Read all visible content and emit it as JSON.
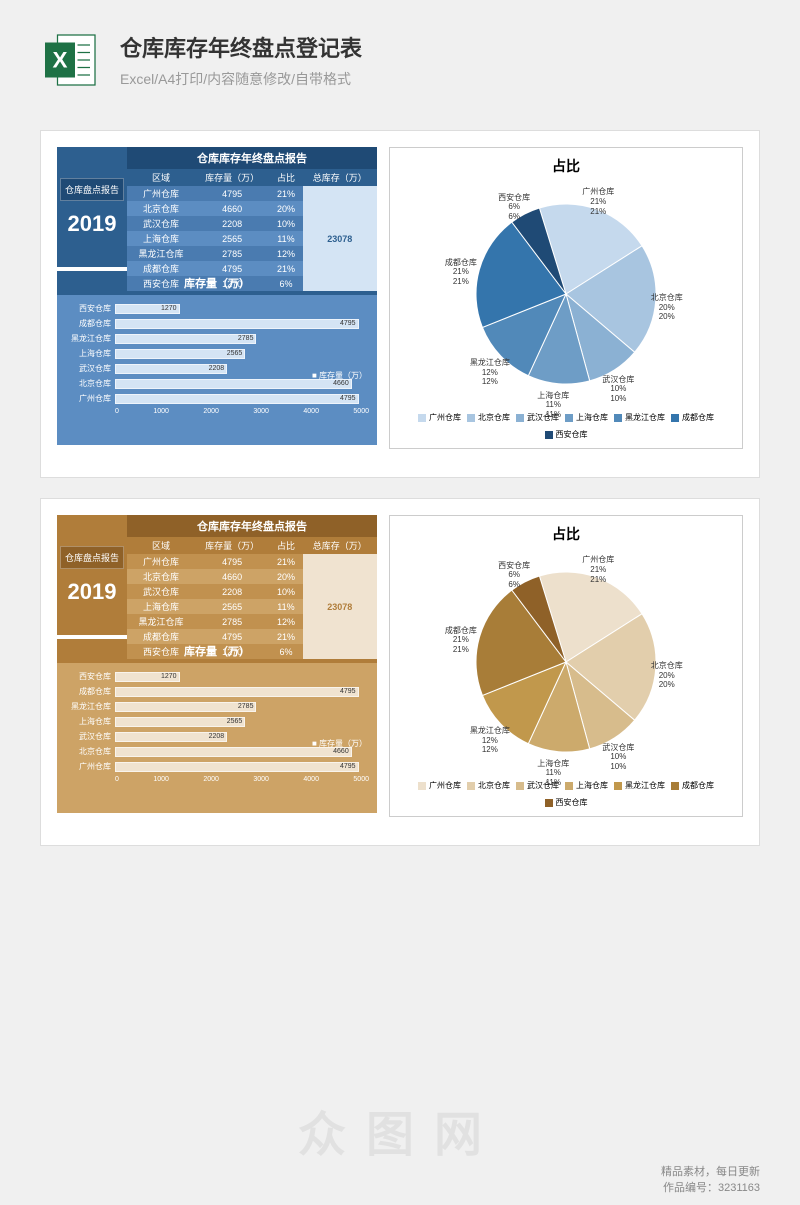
{
  "header": {
    "title": "仓库库存年终盘点登记表",
    "subtitle": "Excel/A4打印/内容随意修改/自带格式"
  },
  "badge_label": "仓库盘点报告",
  "year": "2019",
  "table_title": "仓库库存年终盘点报告",
  "columns": [
    "区域",
    "库存量（万）",
    "占比",
    "总库存（万）"
  ],
  "total": "23078",
  "rows": [
    {
      "region": "广州仓库",
      "stock": 4795,
      "pct": "21%"
    },
    {
      "region": "北京仓库",
      "stock": 4660,
      "pct": "20%"
    },
    {
      "region": "武汉仓库",
      "stock": 2208,
      "pct": "10%"
    },
    {
      "region": "上海仓库",
      "stock": 2565,
      "pct": "11%"
    },
    {
      "region": "黑龙江仓库",
      "stock": 2785,
      "pct": "12%"
    },
    {
      "region": "成都仓库",
      "stock": 4795,
      "pct": "21%"
    },
    {
      "region": "西安仓库",
      "stock": 1270,
      "pct": "6%"
    }
  ],
  "bar_title": "库存量（万）",
  "bar_legend": "■ 库存量（万）",
  "bar_axis": [
    "0",
    "1000",
    "2000",
    "3000",
    "4000",
    "5000"
  ],
  "bar_max": 5000,
  "pie_title": "占比",
  "themes": {
    "blue": {
      "badge_bg": "#2d5f8f",
      "badge_dark": "#1f4a75",
      "table_header_bg": "#2d5f8f",
      "table_body_bg": "#4a7bb0",
      "table_alt_bg": "#5c8dc2",
      "total_bg": "#d4e4f4",
      "total_color": "#2d5f8f",
      "bar_section_bg": "#5c8dc2",
      "bar_title_bg": "#2d5f8f",
      "bar_fill": "#d4e4f4",
      "pie_colors": [
        "#c5d9ed",
        "#a8c5e0",
        "#8bb1d3",
        "#6e9dc6",
        "#5189b9",
        "#3475ac",
        "#1f4a75"
      ]
    },
    "brown": {
      "badge_bg": "#b07d3a",
      "badge_dark": "#8f6128",
      "table_header_bg": "#b07d3a",
      "table_body_bg": "#c1914f",
      "table_alt_bg": "#cda366",
      "total_bg": "#f0e3d0",
      "total_color": "#b07d3a",
      "bar_section_bg": "#cda366",
      "bar_title_bg": "#b07d3a",
      "bar_fill": "#f0e3d0",
      "pie_colors": [
        "#ede0cc",
        "#e2ceac",
        "#d7bc8c",
        "#ccaa6c",
        "#c1984c",
        "#a87d38",
        "#8f6128"
      ]
    }
  },
  "watermark": "众图网",
  "footer_lines": [
    "精品素材，每日更新",
    "作品编号：3231163"
  ]
}
